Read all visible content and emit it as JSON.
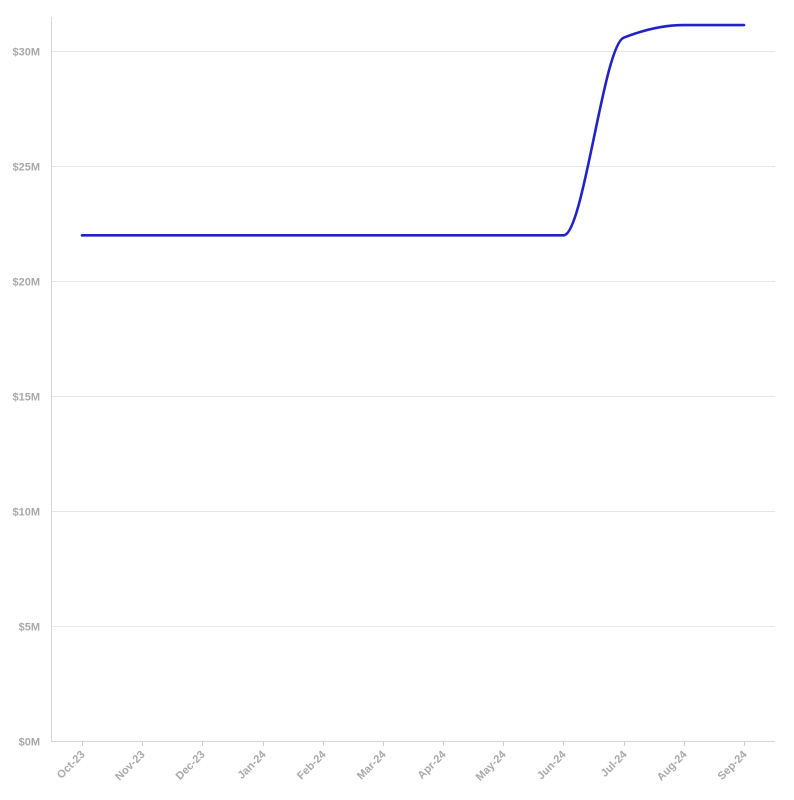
{
  "chart_data": {
    "type": "line",
    "title": "",
    "xlabel": "",
    "ylabel": "",
    "x": [
      "Oct-23",
      "Nov-23",
      "Dec-23",
      "Jan-24",
      "Feb-24",
      "Mar-24",
      "Apr-24",
      "May-24",
      "Jun-24",
      "Jul-24",
      "Aug-24",
      "Sep-24"
    ],
    "series": [
      {
        "color": "#2222cc",
        "values": [
          22000000,
          22000000,
          22000000,
          22000000,
          22000000,
          22000000,
          22000000,
          22000000,
          22000000,
          30600000,
          31150000,
          31150000
        ]
      }
    ],
    "ylim": [
      0,
      31500000
    ],
    "yticks": [
      0,
      5000000,
      10000000,
      15000000,
      20000000,
      25000000,
      30000000
    ],
    "ytick_labels": [
      "$0M",
      "$5M",
      "$10M",
      "$15M",
      "$20M",
      "$25M",
      "$30M"
    ],
    "grid": true,
    "legend": "none",
    "curve": "smooth"
  },
  "colors": {
    "line": "#2222cc",
    "grid": "#e6e6e6",
    "axis": "#d6d6d6",
    "tick_label": "#a9a9a9",
    "background": "#ffffff"
  }
}
